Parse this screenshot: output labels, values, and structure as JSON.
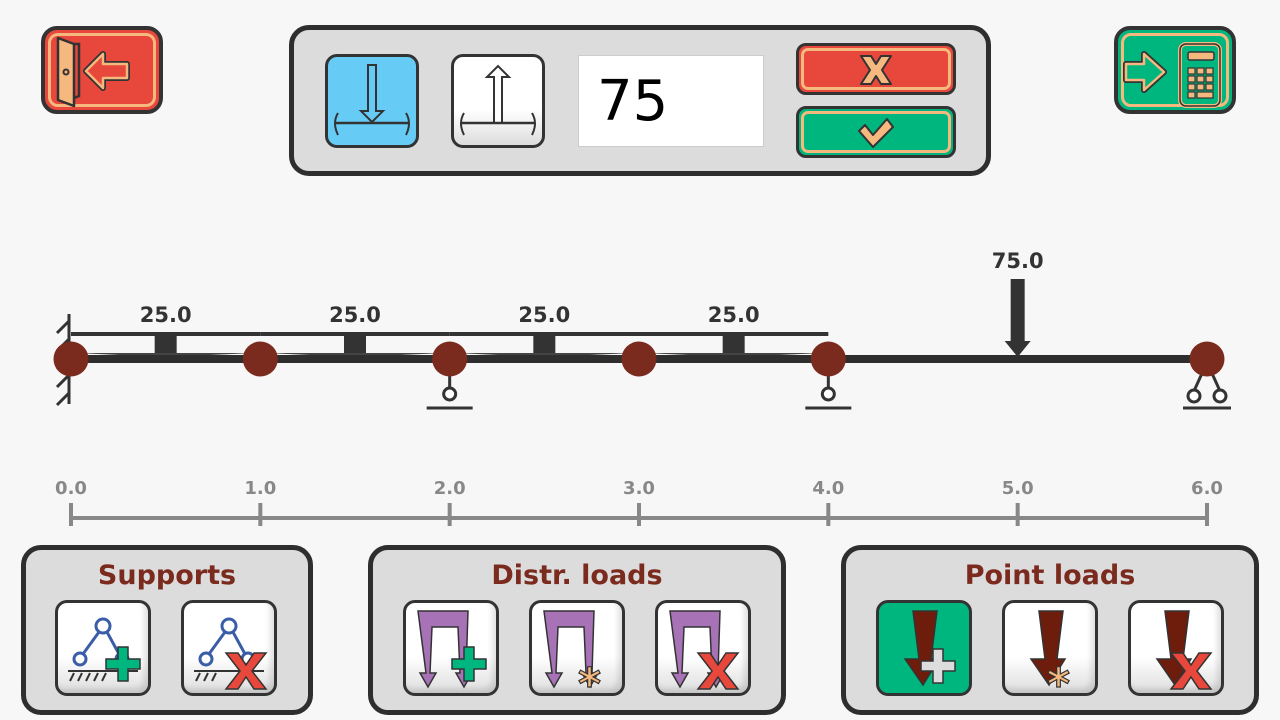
{
  "header": {
    "exit_button": {
      "icon": "exit-door-arrow-icon",
      "color": "#e8473c"
    },
    "calculate_button": {
      "icon": "arrow-calculator-icon",
      "color": "#00b67f"
    }
  },
  "load_editor": {
    "direction_down": {
      "icon": "load-down-icon",
      "selected": true,
      "color": "#66ccf5"
    },
    "direction_up": {
      "icon": "load-up-icon",
      "selected": false
    },
    "value": "75",
    "cancel": {
      "icon": "x-icon",
      "color": "#e8473c"
    },
    "confirm": {
      "icon": "check-icon",
      "color": "#00b67f"
    }
  },
  "beam": {
    "distributed_loads": [
      {
        "start": 0,
        "end": 1,
        "label": "25.0"
      },
      {
        "start": 1,
        "end": 2,
        "label": "25.0"
      },
      {
        "start": 2,
        "end": 3,
        "label": "25.0"
      },
      {
        "start": 3,
        "end": 4,
        "label": "25.0"
      }
    ],
    "point_loads": [
      {
        "position": 5,
        "label": "75.0",
        "direction": "down"
      }
    ],
    "nodes": [
      0,
      1,
      2,
      3,
      4,
      6
    ],
    "supports": [
      {
        "position": 0,
        "type": "fixed"
      },
      {
        "position": 2,
        "type": "roller"
      },
      {
        "position": 4,
        "type": "roller"
      },
      {
        "position": 6,
        "type": "pin"
      }
    ],
    "node_color": "#7b2a1e",
    "axis": {
      "min": 0,
      "max": 6,
      "ticks": [
        "0.0",
        "1.0",
        "2.0",
        "3.0",
        "4.0",
        "5.0",
        "6.0"
      ]
    }
  },
  "panels": {
    "supports": {
      "title": "Supports",
      "buttons": [
        {
          "icon": "add-support-icon"
        },
        {
          "icon": "delete-support-icon"
        }
      ]
    },
    "distr_loads": {
      "title": "Distr. loads",
      "buttons": [
        {
          "icon": "add-distributed-load-icon"
        },
        {
          "icon": "edit-distributed-load-icon"
        },
        {
          "icon": "delete-distributed-load-icon"
        }
      ]
    },
    "point_loads": {
      "title": "Point loads",
      "buttons": [
        {
          "icon": "add-point-load-icon",
          "selected": true
        },
        {
          "icon": "edit-point-load-icon"
        },
        {
          "icon": "delete-point-load-icon"
        }
      ]
    }
  }
}
